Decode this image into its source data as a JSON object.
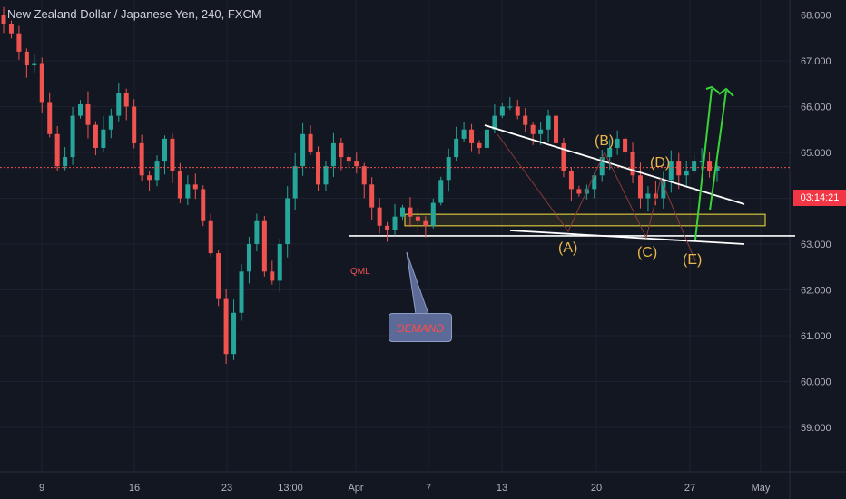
{
  "title": "New Zealand Dollar / Japanese Yen, 240, FXCM",
  "current_price_label": "03:14:21",
  "colors": {
    "background": "#131722",
    "grid": "#1e2230",
    "text": "#b2b5be",
    "up": "#26a69a",
    "down": "#ef5350",
    "wave_label": "#e8b84a",
    "arrow": "#3ad33a",
    "trendline": "#ffffff",
    "demand_zone_border": "#d4c23a",
    "price_line": "#ef5350",
    "price_tag_bg": "#f23645"
  },
  "annotations": {
    "wave_labels": [
      "(A)",
      "(B)",
      "(C)",
      "(D)",
      "(E)"
    ],
    "qml": "QML",
    "demand": "DEMAND"
  },
  "chart_data": {
    "type": "candlestick",
    "title": "New Zealand Dollar / Japanese Yen, 240, FXCM",
    "x_ticks": [
      "9",
      "16",
      "23",
      "13:00",
      "Apr",
      "7",
      "13",
      "20",
      "27",
      "May"
    ],
    "y_ticks": [
      "59.000",
      "60.000",
      "61.000",
      "62.000",
      "63.000",
      "64.000",
      "65.000",
      "66.000",
      "67.000",
      "68.000"
    ],
    "ylim": [
      58.6,
      68.4
    ],
    "current_price": 64.67,
    "grid": true,
    "series": [
      {
        "type": "candlestick",
        "values": [
          67.8,
          67.6,
          67.2,
          66.9,
          66.95,
          66.1,
          65.4,
          64.7,
          64.9,
          65.8,
          66.05,
          65.6,
          65.1,
          65.5,
          65.8,
          66.3,
          66.0,
          65.2,
          64.5,
          64.4,
          64.8,
          65.3,
          64.6,
          64.0,
          64.3,
          64.2,
          63.5,
          62.8,
          61.8,
          60.6,
          61.5,
          62.4,
          63.0,
          63.5,
          62.4,
          62.2,
          63.0,
          64.0,
          64.7,
          65.4,
          65.0,
          64.3,
          64.7,
          65.2,
          64.9,
          64.8,
          64.7,
          64.3,
          63.8,
          63.4,
          63.3,
          63.6,
          63.8,
          63.6,
          63.5,
          63.4,
          63.9,
          64.4,
          64.9,
          65.3,
          65.5,
          65.2,
          65.1,
          65.5,
          65.8,
          66.0,
          66.0,
          65.8,
          65.6,
          65.4,
          65.5,
          65.8,
          65.2,
          64.6,
          64.2,
          64.1,
          64.2,
          64.5,
          64.9,
          65.1,
          65.3,
          65.0,
          64.5,
          64.0,
          64.1,
          64.0,
          64.4,
          64.8,
          64.5,
          64.6,
          64.8,
          64.8,
          64.6,
          64.7
        ]
      }
    ],
    "horizontal_levels": [
      63.18
    ],
    "demand_zone": [
      63.4,
      63.65
    ]
  }
}
